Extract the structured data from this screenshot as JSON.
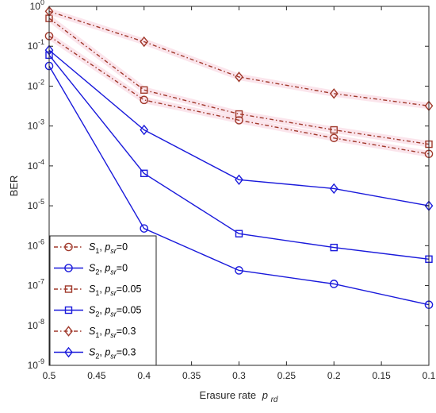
{
  "chart_data": {
    "type": "line",
    "title": "",
    "xlabel": "Erasure rate",
    "xlabel_symbol": "p",
    "xlabel_subscript": "rd",
    "ylabel": "BER",
    "x_reversed": true,
    "xlim": [
      0.5,
      0.1
    ],
    "ylim": [
      1e-09,
      1
    ],
    "y_scale": "log",
    "grid": false,
    "legend_position": "bottom-left",
    "x_ticks": [
      "0.5",
      "0.45",
      "0.4",
      "0.35",
      "0.3",
      "0.25",
      "0.2",
      "0.15",
      "0.1"
    ],
    "y_tick_base": "10",
    "y_tick_exponents": [
      "-9",
      "-8",
      "-7",
      "-6",
      "-5",
      "-4",
      "-3",
      "-2",
      "-1",
      "0"
    ],
    "x": [
      0.5,
      0.4,
      0.3,
      0.2,
      0.1
    ],
    "series": [
      {
        "symbol": "S",
        "sub": "1",
        "param": "p",
        "param_sub": "sr",
        "value_text": "=0",
        "color": "#a0392b",
        "linestyle": "dash-dot",
        "marker": "circle",
        "halo": true,
        "values": [
          0.18,
          0.0045,
          0.0014,
          0.0005,
          0.0002
        ]
      },
      {
        "symbol": "S",
        "sub": "2",
        "param": "p",
        "param_sub": "sr",
        "value_text": "=0",
        "color": "#1a1adb",
        "linestyle": "solid",
        "marker": "circle",
        "halo": false,
        "values": [
          0.032,
          2.7e-06,
          2.4e-07,
          1.1e-07,
          3.3e-08
        ]
      },
      {
        "symbol": "S",
        "sub": "1",
        "param": "p",
        "param_sub": "sr",
        "value_text": "=0.05",
        "color": "#a0392b",
        "linestyle": "dash-dot",
        "marker": "square",
        "halo": true,
        "values": [
          0.5,
          0.008,
          0.002,
          0.0008,
          0.00035
        ]
      },
      {
        "symbol": "S",
        "sub": "2",
        "param": "p",
        "param_sub": "sr",
        "value_text": "=0.05",
        "color": "#1a1adb",
        "linestyle": "solid",
        "marker": "square",
        "halo": false,
        "values": [
          0.06,
          6.5e-05,
          2e-06,
          9e-07,
          4.6e-07
        ]
      },
      {
        "symbol": "S",
        "sub": "1",
        "param": "p",
        "param_sub": "sr",
        "value_text": "=0.3",
        "color": "#a0392b",
        "linestyle": "dash-dot",
        "marker": "diamond",
        "halo": true,
        "values": [
          0.75,
          0.13,
          0.017,
          0.0065,
          0.0032
        ]
      },
      {
        "symbol": "S",
        "sub": "2",
        "param": "p",
        "param_sub": "sr",
        "value_text": "=0.3",
        "color": "#1a1adb",
        "linestyle": "solid",
        "marker": "diamond",
        "halo": false,
        "values": [
          0.08,
          0.0008,
          4.5e-05,
          2.7e-05,
          1e-05
        ]
      }
    ]
  }
}
